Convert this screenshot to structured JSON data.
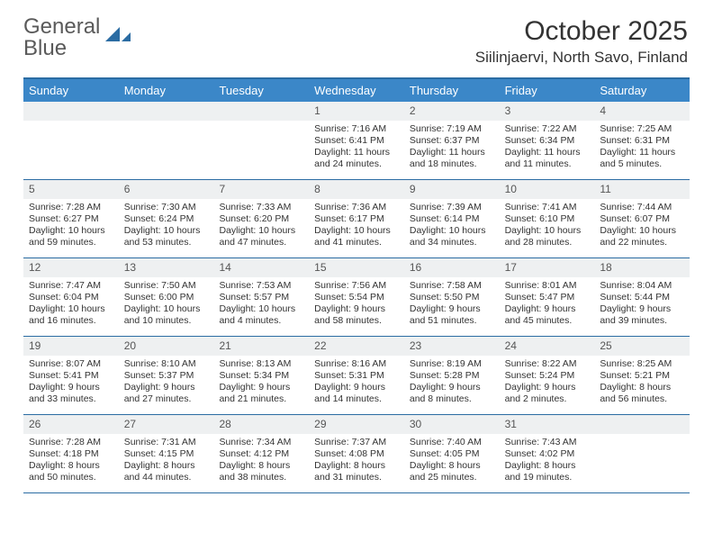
{
  "logo": {
    "word1": "General",
    "word2": "Blue"
  },
  "title": "October 2025",
  "location": "Siilinjaervi, North Savo, Finland",
  "colors": {
    "header_bg": "#3b87c8",
    "border": "#2b6ca3",
    "daynum_bg": "#eef0f1",
    "text": "#333333",
    "logo_gray": "#5a5a5a",
    "logo_blue": "#2b6ca3"
  },
  "weekdays": [
    "Sunday",
    "Monday",
    "Tuesday",
    "Wednesday",
    "Thursday",
    "Friday",
    "Saturday"
  ],
  "weeks": [
    [
      null,
      null,
      null,
      {
        "n": "1",
        "sr": "7:16 AM",
        "ss": "6:41 PM",
        "dl": "11 hours and 24 minutes."
      },
      {
        "n": "2",
        "sr": "7:19 AM",
        "ss": "6:37 PM",
        "dl": "11 hours and 18 minutes."
      },
      {
        "n": "3",
        "sr": "7:22 AM",
        "ss": "6:34 PM",
        "dl": "11 hours and 11 minutes."
      },
      {
        "n": "4",
        "sr": "7:25 AM",
        "ss": "6:31 PM",
        "dl": "11 hours and 5 minutes."
      }
    ],
    [
      {
        "n": "5",
        "sr": "7:28 AM",
        "ss": "6:27 PM",
        "dl": "10 hours and 59 minutes."
      },
      {
        "n": "6",
        "sr": "7:30 AM",
        "ss": "6:24 PM",
        "dl": "10 hours and 53 minutes."
      },
      {
        "n": "7",
        "sr": "7:33 AM",
        "ss": "6:20 PM",
        "dl": "10 hours and 47 minutes."
      },
      {
        "n": "8",
        "sr": "7:36 AM",
        "ss": "6:17 PM",
        "dl": "10 hours and 41 minutes."
      },
      {
        "n": "9",
        "sr": "7:39 AM",
        "ss": "6:14 PM",
        "dl": "10 hours and 34 minutes."
      },
      {
        "n": "10",
        "sr": "7:41 AM",
        "ss": "6:10 PM",
        "dl": "10 hours and 28 minutes."
      },
      {
        "n": "11",
        "sr": "7:44 AM",
        "ss": "6:07 PM",
        "dl": "10 hours and 22 minutes."
      }
    ],
    [
      {
        "n": "12",
        "sr": "7:47 AM",
        "ss": "6:04 PM",
        "dl": "10 hours and 16 minutes."
      },
      {
        "n": "13",
        "sr": "7:50 AM",
        "ss": "6:00 PM",
        "dl": "10 hours and 10 minutes."
      },
      {
        "n": "14",
        "sr": "7:53 AM",
        "ss": "5:57 PM",
        "dl": "10 hours and 4 minutes."
      },
      {
        "n": "15",
        "sr": "7:56 AM",
        "ss": "5:54 PM",
        "dl": "9 hours and 58 minutes."
      },
      {
        "n": "16",
        "sr": "7:58 AM",
        "ss": "5:50 PM",
        "dl": "9 hours and 51 minutes."
      },
      {
        "n": "17",
        "sr": "8:01 AM",
        "ss": "5:47 PM",
        "dl": "9 hours and 45 minutes."
      },
      {
        "n": "18",
        "sr": "8:04 AM",
        "ss": "5:44 PM",
        "dl": "9 hours and 39 minutes."
      }
    ],
    [
      {
        "n": "19",
        "sr": "8:07 AM",
        "ss": "5:41 PM",
        "dl": "9 hours and 33 minutes."
      },
      {
        "n": "20",
        "sr": "8:10 AM",
        "ss": "5:37 PM",
        "dl": "9 hours and 27 minutes."
      },
      {
        "n": "21",
        "sr": "8:13 AM",
        "ss": "5:34 PM",
        "dl": "9 hours and 21 minutes."
      },
      {
        "n": "22",
        "sr": "8:16 AM",
        "ss": "5:31 PM",
        "dl": "9 hours and 14 minutes."
      },
      {
        "n": "23",
        "sr": "8:19 AM",
        "ss": "5:28 PM",
        "dl": "9 hours and 8 minutes."
      },
      {
        "n": "24",
        "sr": "8:22 AM",
        "ss": "5:24 PM",
        "dl": "9 hours and 2 minutes."
      },
      {
        "n": "25",
        "sr": "8:25 AM",
        "ss": "5:21 PM",
        "dl": "8 hours and 56 minutes."
      }
    ],
    [
      {
        "n": "26",
        "sr": "7:28 AM",
        "ss": "4:18 PM",
        "dl": "8 hours and 50 minutes."
      },
      {
        "n": "27",
        "sr": "7:31 AM",
        "ss": "4:15 PM",
        "dl": "8 hours and 44 minutes."
      },
      {
        "n": "28",
        "sr": "7:34 AM",
        "ss": "4:12 PM",
        "dl": "8 hours and 38 minutes."
      },
      {
        "n": "29",
        "sr": "7:37 AM",
        "ss": "4:08 PM",
        "dl": "8 hours and 31 minutes."
      },
      {
        "n": "30",
        "sr": "7:40 AM",
        "ss": "4:05 PM",
        "dl": "8 hours and 25 minutes."
      },
      {
        "n": "31",
        "sr": "7:43 AM",
        "ss": "4:02 PM",
        "dl": "8 hours and 19 minutes."
      },
      null
    ]
  ],
  "labels": {
    "sunrise": "Sunrise:",
    "sunset": "Sunset:",
    "daylight": "Daylight:"
  }
}
